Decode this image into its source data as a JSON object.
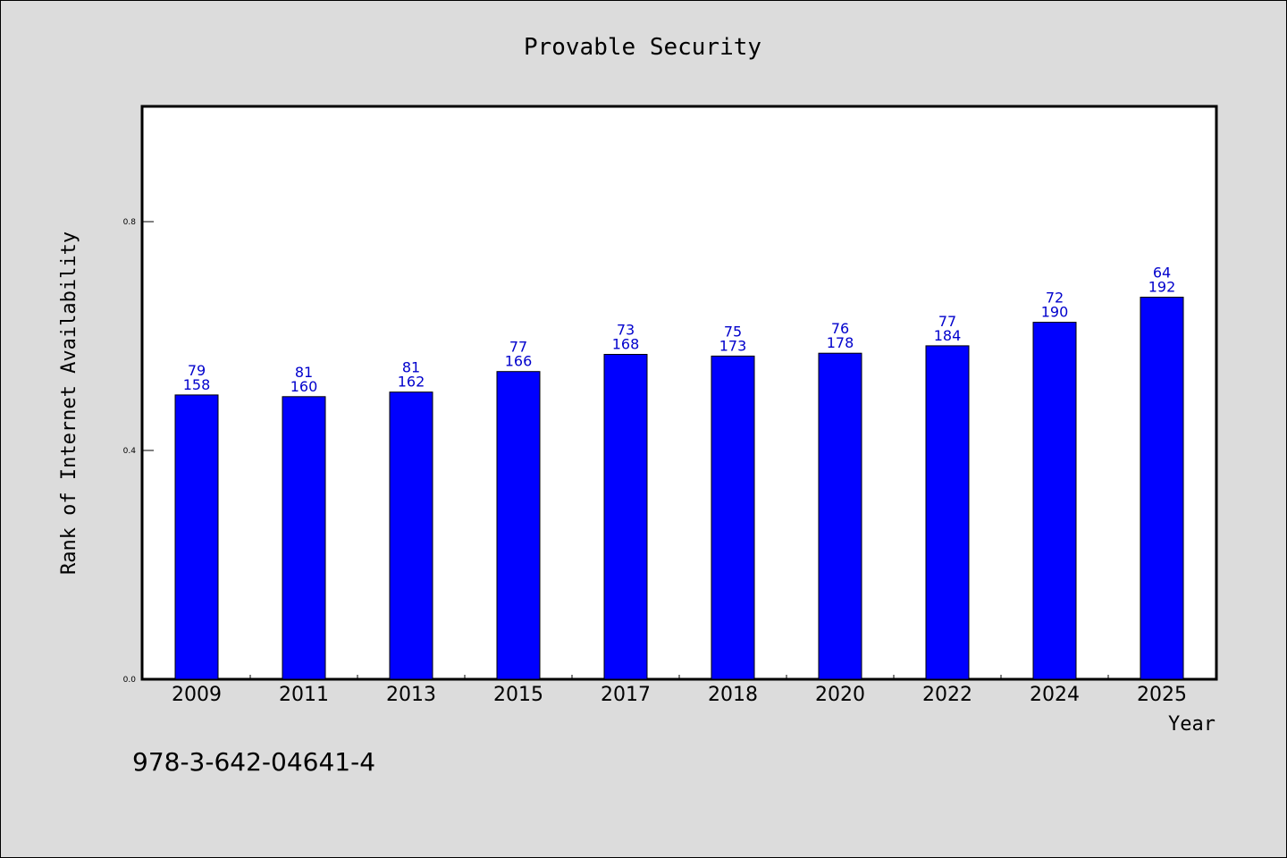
{
  "chart_data": {
    "type": "bar",
    "title": "Provable Security",
    "xlabel": "Year",
    "ylabel": "Rank of Internet Availability",
    "footnote": "978-3-642-04641-4",
    "categories": [
      "2009",
      "2011",
      "2013",
      "2015",
      "2017",
      "2018",
      "2020",
      "2022",
      "2024",
      "2025"
    ],
    "values": [
      0.497,
      0.494,
      0.502,
      0.538,
      0.568,
      0.565,
      0.57,
      0.583,
      0.624,
      0.668
    ],
    "label_top": [
      "79",
      "81",
      "81",
      "77",
      "73",
      "75",
      "76",
      "77",
      "72",
      "64"
    ],
    "label_bottom": [
      "158",
      "160",
      "162",
      "166",
      "168",
      "173",
      "178",
      "184",
      "190",
      "192"
    ],
    "ylim": [
      0,
      1.0
    ],
    "yticks": [
      "0.0",
      "0.4",
      "0.8"
    ],
    "grid": false,
    "legend": "none",
    "colors": {
      "bar": "#0000ff",
      "bar_edge": "#000000",
      "label": "#0000cc",
      "background": "#dcdcdc",
      "plot_background": "#ffffff"
    }
  }
}
